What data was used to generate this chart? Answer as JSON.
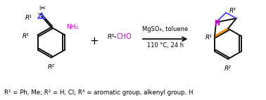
{
  "bg_color": "#ffffff",
  "fig_width": 3.78,
  "fig_height": 1.42,
  "dpi": 100,
  "caption": "R¹ = Ph, Me; R² = H, Cl; R³ = aromatic group, alkenyl group, H",
  "arrow_label_top": "MgSO₄, toluene",
  "arrow_label_bot": "110 °C, 24 h",
  "plus_text": "+",
  "aldehyde_text": "R³-CHO",
  "aldehyde_color": "#cc00cc",
  "arrow_color": "#000000",
  "cyclopropane_color": "#4444ff",
  "orange_bond_color": "#ff8800",
  "nitrogen_color": "#cc00cc",
  "black": "#000000",
  "blue": "#4444ff"
}
